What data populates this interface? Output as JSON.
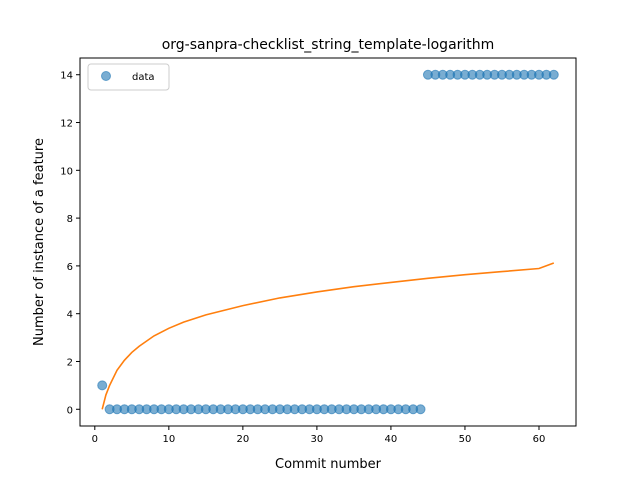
{
  "chart_data": {
    "type": "scatter",
    "title": "org-sanpra-checklist_string_template-logarithm",
    "xlabel": "Commit number",
    "ylabel": "Number of instance of a feature",
    "xlim": [
      -2,
      65
    ],
    "ylim": [
      -0.7,
      14.7
    ],
    "xticks": [
      0,
      10,
      20,
      30,
      40,
      50,
      60
    ],
    "yticks": [
      0,
      2,
      4,
      6,
      8,
      10,
      12,
      14
    ],
    "legend": {
      "position": "top-left",
      "entries": [
        "data"
      ]
    },
    "colors": {
      "data": "#1f77b4",
      "fit": "#ff7f0e"
    },
    "series": [
      {
        "name": "data",
        "kind": "scatter",
        "x": [
          1,
          2,
          3,
          4,
          5,
          6,
          7,
          8,
          9,
          10,
          11,
          12,
          13,
          14,
          15,
          16,
          17,
          18,
          19,
          20,
          21,
          22,
          23,
          24,
          25,
          26,
          27,
          28,
          29,
          30,
          31,
          32,
          33,
          34,
          35,
          36,
          37,
          38,
          39,
          40,
          41,
          42,
          43,
          44,
          45,
          46,
          47,
          48,
          49,
          50,
          51,
          52,
          53,
          54,
          55,
          56,
          57,
          58,
          59,
          60,
          61,
          62
        ],
        "y": [
          1,
          0,
          0,
          0,
          0,
          0,
          0,
          0,
          0,
          0,
          0,
          0,
          0,
          0,
          0,
          0,
          0,
          0,
          0,
          0,
          0,
          0,
          0,
          0,
          0,
          0,
          0,
          0,
          0,
          0,
          0,
          0,
          0,
          0,
          0,
          0,
          0,
          0,
          0,
          0,
          0,
          0,
          0,
          0,
          14,
          14,
          14,
          14,
          14,
          14,
          14,
          14,
          14,
          14,
          14,
          14,
          14,
          14,
          14,
          14,
          14,
          14
        ]
      },
      {
        "kind": "line",
        "x": [
          1,
          1.5,
          2,
          3,
          4,
          5,
          6,
          8,
          10,
          12,
          15,
          20,
          25,
          30,
          35,
          40,
          45,
          50,
          55,
          60,
          62
        ],
        "y": [
          0,
          0.6,
          1.0,
          1.63,
          2.05,
          2.38,
          2.64,
          3.07,
          3.39,
          3.65,
          3.95,
          4.34,
          4.66,
          4.91,
          5.13,
          5.31,
          5.48,
          5.63,
          5.76,
          5.89,
          6.12
        ]
      }
    ]
  }
}
